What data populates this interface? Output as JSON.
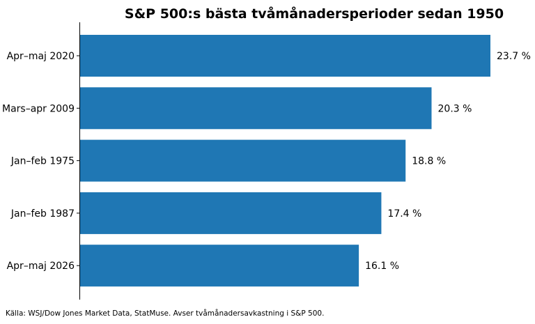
{
  "chart_data": {
    "type": "bar",
    "orientation": "horizontal",
    "title": "S&P 500:s bästa tvåmånadersperioder sedan 1950",
    "categories": [
      "Apr–maj 2020",
      "Mars–apr 2009",
      "Jan–feb 1975",
      "Jan–feb 1987",
      "Apr–maj 2026"
    ],
    "values": [
      23.7,
      20.3,
      18.8,
      17.4,
      16.1
    ],
    "value_labels": [
      "23.7 %",
      "20.3 %",
      "18.8 %",
      "17.4 %",
      "16.1 %"
    ],
    "xlabel": "",
    "ylabel": "",
    "xlim": [
      0,
      23.7
    ],
    "grid": false,
    "bar_color": "#1f77b4"
  },
  "footer": {
    "source": "Källa: WSJ/Dow Jones Market Data, StatMuse. Avser tvåmånadersavkastning i S&P 500."
  }
}
